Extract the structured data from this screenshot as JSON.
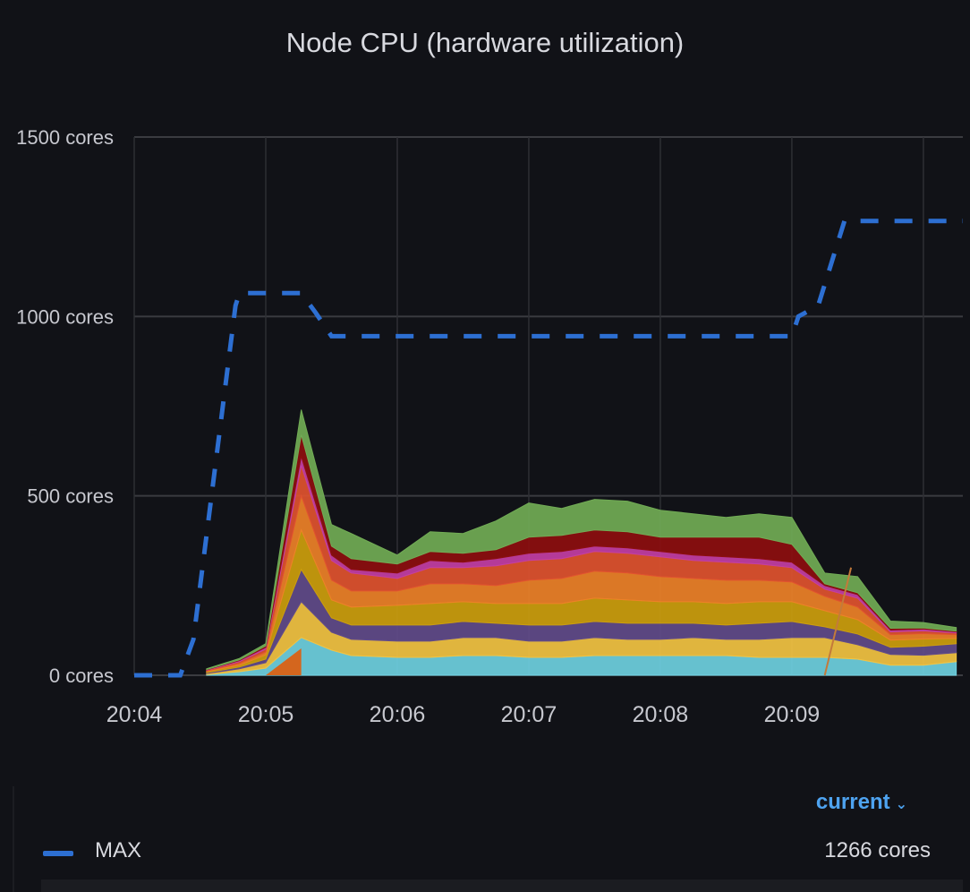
{
  "panel": {
    "title": "Node CPU (hardware utilization)"
  },
  "chart_data": {
    "type": "area",
    "title": "Node CPU (hardware utilization)",
    "stacked": true,
    "ylim": [
      0,
      1500
    ],
    "yticks": [
      0,
      500,
      1000,
      1500
    ],
    "ytick_labels": [
      "0 cores",
      "500 cores",
      "1000 cores",
      "1500 cores"
    ],
    "xlim": [
      0,
      6.3
    ],
    "xticks": [
      0,
      1,
      2,
      3,
      4,
      5
    ],
    "xtick_labels": [
      "20:04",
      "20:05",
      "20:06",
      "20:07",
      "20:08",
      "20:09"
    ],
    "x": [
      0.55,
      0.8,
      1.0,
      1.27,
      1.5,
      1.65,
      2.0,
      2.25,
      2.5,
      2.75,
      3.0,
      3.25,
      3.5,
      3.75,
      4.0,
      4.25,
      4.5,
      4.75,
      5.0,
      5.25,
      5.5,
      5.75,
      6.0,
      6.25
    ],
    "series": [
      {
        "name": "cyan",
        "color": "#6ed0e0",
        "values": [
          2,
          10,
          20,
          105,
          70,
          55,
          50,
          50,
          55,
          55,
          50,
          50,
          55,
          55,
          55,
          55,
          55,
          50,
          50,
          50,
          45,
          28,
          28,
          38
        ]
      },
      {
        "name": "yellow",
        "color": "#f2c342",
        "values": [
          3,
          8,
          15,
          100,
          50,
          45,
          45,
          45,
          50,
          50,
          45,
          45,
          50,
          45,
          45,
          50,
          45,
          50,
          55,
          55,
          40,
          30,
          28,
          25
        ]
      },
      {
        "name": "purple",
        "color": "#614b8a",
        "values": [
          2,
          5,
          10,
          90,
          40,
          40,
          45,
          45,
          45,
          40,
          45,
          45,
          45,
          45,
          45,
          40,
          40,
          45,
          45,
          30,
          30,
          20,
          25,
          25
        ]
      },
      {
        "name": "gold",
        "color": "#cc9e0d",
        "values": [
          3,
          5,
          12,
          110,
          50,
          50,
          55,
          60,
          55,
          55,
          60,
          60,
          65,
          65,
          60,
          60,
          60,
          60,
          55,
          45,
          40,
          20,
          20,
          15
        ]
      },
      {
        "name": "orange",
        "color": "#ed8128",
        "values": [
          2,
          5,
          8,
          95,
          55,
          45,
          40,
          55,
          50,
          50,
          65,
          70,
          75,
          75,
          70,
          65,
          65,
          60,
          55,
          40,
          35,
          15,
          15,
          10
        ]
      },
      {
        "name": "red",
        "color": "#e0522f",
        "values": [
          2,
          5,
          8,
          85,
          55,
          50,
          35,
          45,
          45,
          55,
          55,
          55,
          55,
          55,
          55,
          50,
          50,
          45,
          40,
          20,
          25,
          8,
          8,
          5
        ]
      },
      {
        "name": "magenta",
        "color": "#c33ea4",
        "values": [
          1,
          3,
          5,
          25,
          15,
          10,
          15,
          20,
          15,
          20,
          20,
          20,
          15,
          15,
          15,
          15,
          15,
          15,
          15,
          10,
          10,
          5,
          5,
          3
        ]
      },
      {
        "name": "darkred",
        "color": "#8d0e0f",
        "values": [
          1,
          2,
          4,
          60,
          25,
          30,
          25,
          25,
          25,
          25,
          45,
          45,
          45,
          45,
          40,
          50,
          55,
          60,
          50,
          5,
          5,
          5,
          3,
          2
        ]
      },
      {
        "name": "green",
        "color": "#71ab55",
        "values": [
          2,
          4,
          6,
          70,
          60,
          70,
          25,
          55,
          55,
          80,
          95,
          75,
          85,
          85,
          75,
          65,
          55,
          65,
          75,
          30,
          45,
          20,
          15,
          10
        ]
      }
    ],
    "orange_overlay": {
      "x": [
        1.0,
        1.27
      ],
      "values": [
        5,
        75
      ]
    },
    "crossing_line": {
      "x": [
        5.25,
        5.45
      ],
      "values": [
        0,
        300
      ]
    },
    "max_series": {
      "name": "MAX",
      "color": "#2d6fd2",
      "x": [
        0,
        0.35,
        0.45,
        0.77,
        0.8,
        1.0,
        1.27,
        1.38,
        1.5,
        5.0,
        5.05,
        5.2,
        5.4,
        6.3
      ],
      "values": [
        0,
        0,
        100,
        1030,
        1065,
        1065,
        1065,
        1010,
        945,
        945,
        1000,
        1030,
        1266,
        1266
      ]
    },
    "legend": {
      "sort_label": "current",
      "items": [
        {
          "name": "MAX",
          "value": "1266 cores"
        }
      ]
    }
  }
}
